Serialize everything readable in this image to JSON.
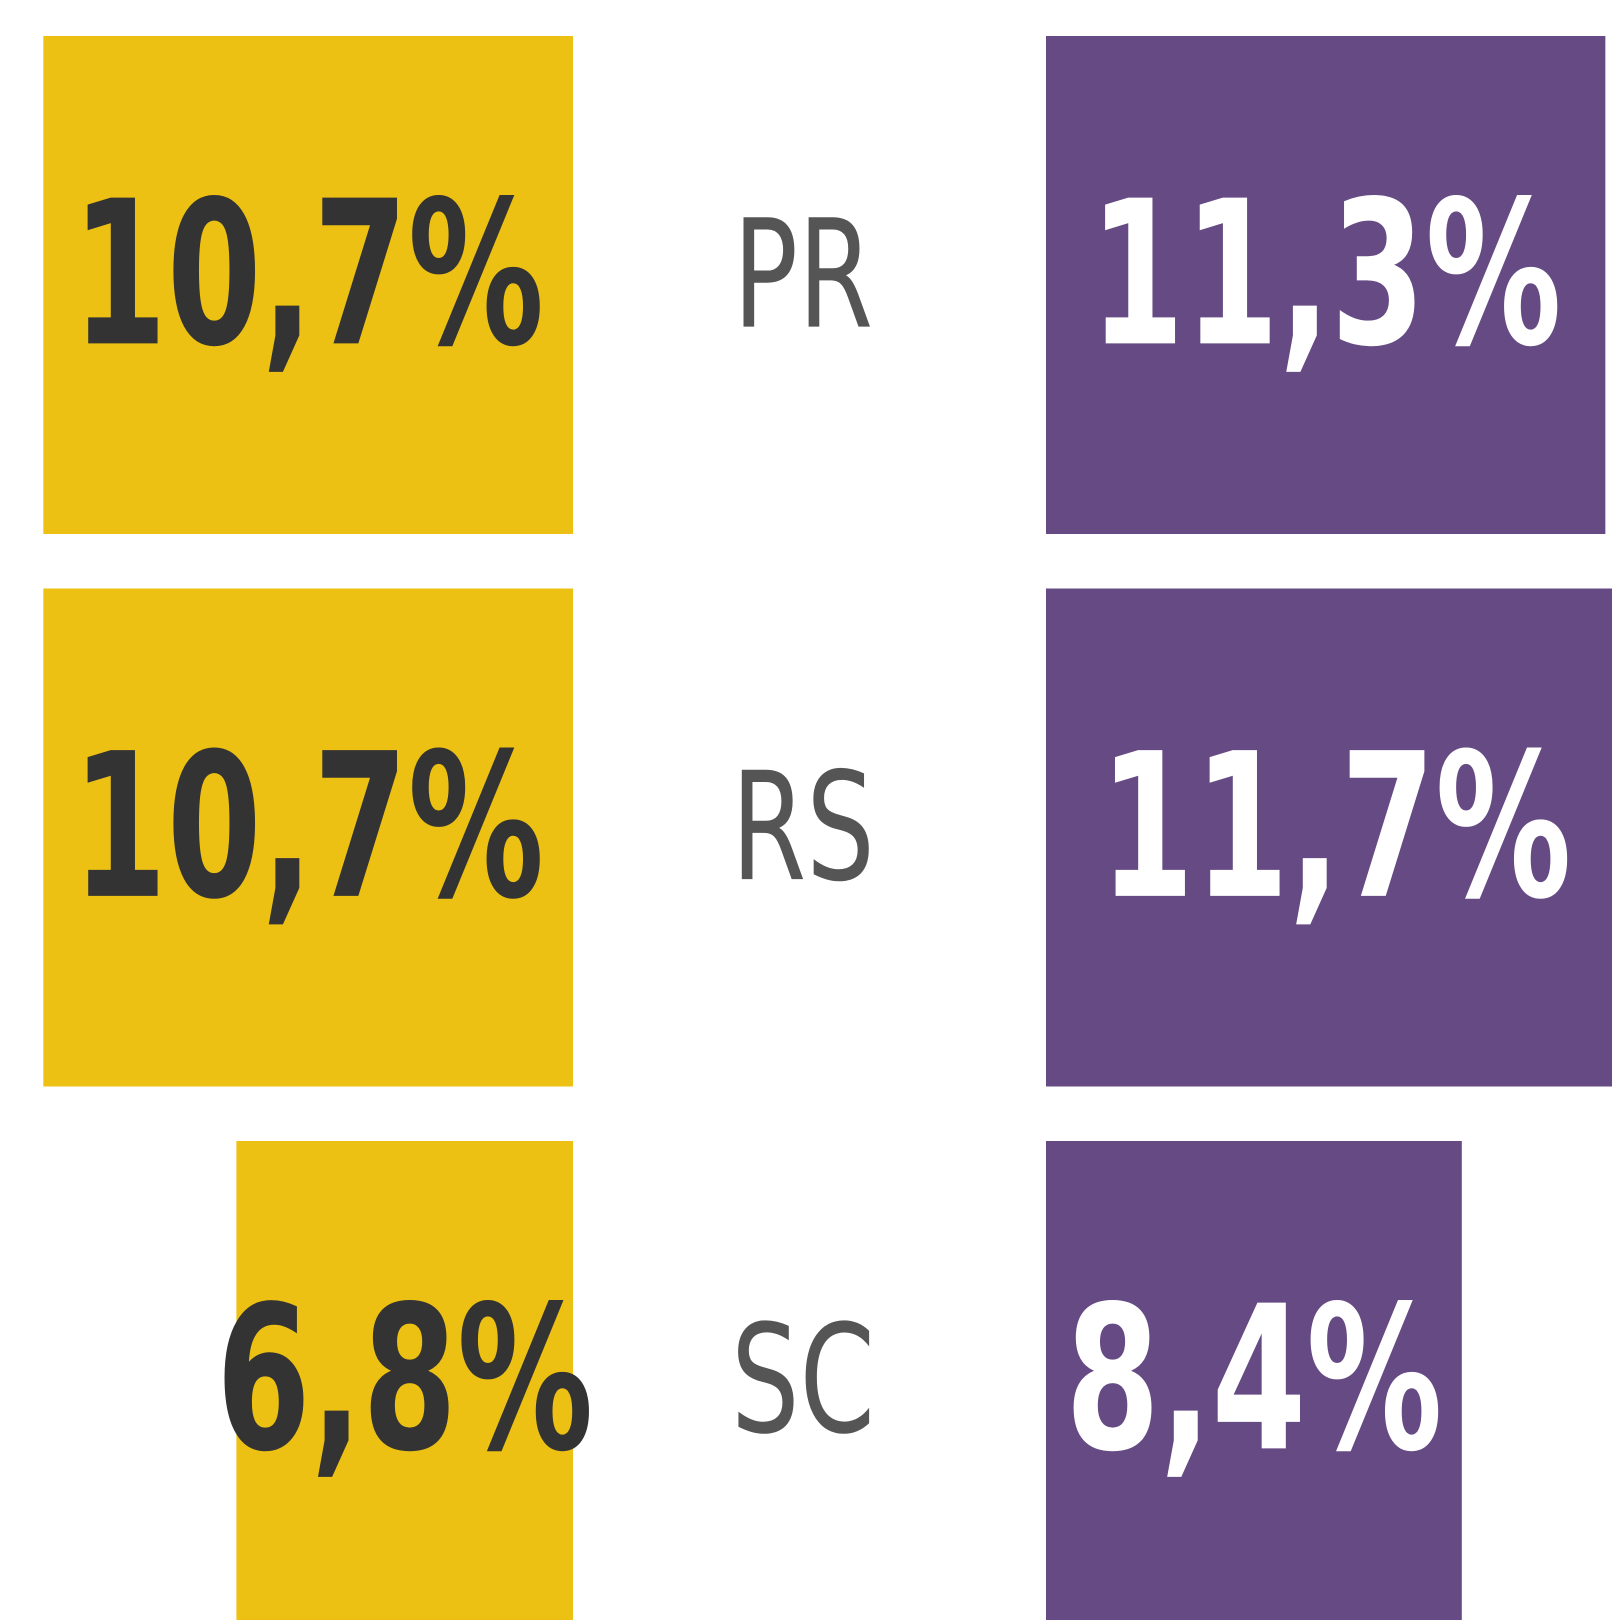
{
  "chart_data": {
    "type": "butterfly-bar",
    "categories": [
      "PR",
      "RS",
      "SC"
    ],
    "series": [
      {
        "color": "#ecc113",
        "values": [
          10.7,
          10.7,
          6.8
        ],
        "value_labels": [
          "10,7%",
          "10,7%",
          "6,8%"
        ]
      },
      {
        "color": "#654a84",
        "values": [
          11.3,
          11.7,
          8.4
        ],
        "value_labels": [
          "11,3%",
          "11,7%",
          "8,4%"
        ]
      }
    ]
  }
}
